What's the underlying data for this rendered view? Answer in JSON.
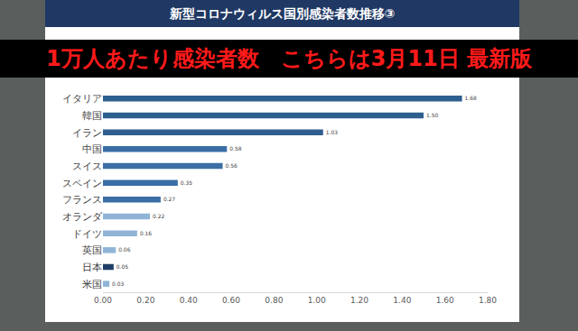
{
  "chart_data": {
    "type": "bar",
    "title": "新型コロナウィルス国別感染者数推移③",
    "subtitle": "1万人あたり感染者数　こちらは3月11日 最新版",
    "orientation": "horizontal",
    "categories": [
      "イタリア",
      "韓国",
      "イラン",
      "中国",
      "スイス",
      "スペイン",
      "フランス",
      "オランダ",
      "ドイツ",
      "英国",
      "日本",
      "米国"
    ],
    "values": [
      1.68,
      1.5,
      1.03,
      0.58,
      0.56,
      0.35,
      0.27,
      0.22,
      0.16,
      0.06,
      0.05,
      0.03
    ],
    "value_labels": [
      "1.68",
      "1.50",
      "1.03",
      "0.58",
      "0.56",
      "0.35",
      "0.27",
      "0.22",
      "0.16",
      "0.06",
      "0.05",
      "0.03"
    ],
    "colors": [
      "#2f5f8f",
      "#2f5f8f",
      "#2f5f8f",
      "#3a6ea5",
      "#3a6ea5",
      "#3a6ea5",
      "#3a6ea5",
      "#8fb4d6",
      "#8fb4d6",
      "#8fb4d6",
      "#1f3d66",
      "#8fb4d6"
    ],
    "data_labels": true,
    "grid": false,
    "xlim": [
      0,
      1.8
    ],
    "xticks": [
      {
        "value": 0,
        "label": "0.00"
      },
      {
        "value": 0.2,
        "label": "0.20"
      },
      {
        "value": 0.4,
        "label": "0.40"
      },
      {
        "value": 0.6,
        "label": "0.60"
      },
      {
        "value": 0.8,
        "label": "0.80"
      },
      {
        "value": 1.0,
        "label": "1.00"
      },
      {
        "value": 1.2,
        "label": "1.20"
      },
      {
        "value": 1.4,
        "label": "1.40"
      },
      {
        "value": 1.6,
        "label": "1.60"
      },
      {
        "value": 1.8,
        "label": "1.80"
      }
    ]
  }
}
